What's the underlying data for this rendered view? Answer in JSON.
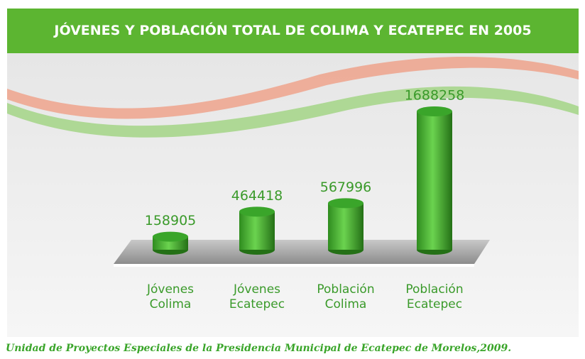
{
  "chart_data": {
    "type": "bar",
    "title": "JÓVENES Y POBLACIÓN TOTAL DE COLIMA Y ECATEPEC EN 2005",
    "categories": [
      "Jóvenes Colima",
      "Jóvenes Ecatepec",
      "Población Colima",
      "Población Ecatepec"
    ],
    "values": [
      158905,
      464418,
      567996,
      1688258
    ],
    "color": "#3aa52a",
    "source": "Unidad de Proyectos Especiales de la Presidencia Municipal de Ecatepec de Morelos,2009."
  }
}
